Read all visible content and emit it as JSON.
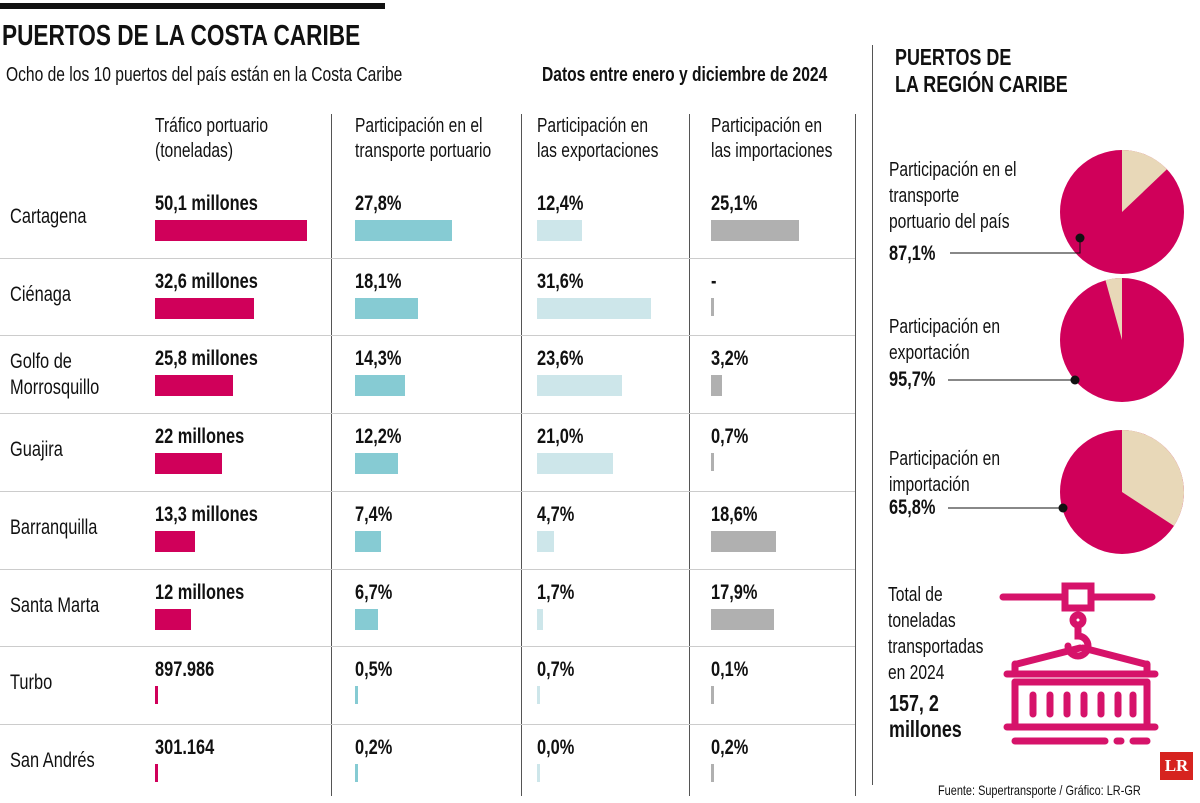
{
  "title": "PUERTOS DE LA COSTA CARIBE",
  "subtitle": "Ocho de los 10 puertos del país están en la Costa Caribe",
  "date_note": "Datos entre enero y diciembre de 2024",
  "colors": {
    "traffic": "#d0005a",
    "transport": "#86cbd3",
    "exports": "#cde6ea",
    "imports": "#b0b0b0",
    "pie_main": "#d0005a",
    "pie_rest": "#e8d8b8"
  },
  "chart_data": {
    "type": "table",
    "columns": [
      {
        "key": "traffic",
        "label_lines": [
          "Tráfico portuario",
          "(toneladas)"
        ]
      },
      {
        "key": "transport",
        "label_lines": [
          "Participación en el",
          "transporte portuario"
        ]
      },
      {
        "key": "exports",
        "label_lines": [
          "Participación en",
          "las exportaciones"
        ]
      },
      {
        "key": "imports",
        "label_lines": [
          "Participación en",
          "las importaciones"
        ]
      }
    ],
    "rows": [
      {
        "port_lines": [
          "Cartagena"
        ],
        "traffic_label": "50,1 millones",
        "traffic": 50.1,
        "transport_label": "27,8%",
        "transport": 27.8,
        "exports_label": "12,4%",
        "exports": 12.4,
        "imports_label": "25,1%",
        "imports": 25.1
      },
      {
        "port_lines": [
          "Ciénaga"
        ],
        "traffic_label": "32,6 millones",
        "traffic": 32.6,
        "transport_label": "18,1%",
        "transport": 18.1,
        "exports_label": "31,6%",
        "exports": 31.6,
        "imports_label": "-",
        "imports": null
      },
      {
        "port_lines": [
          "Golfo de",
          "Morrosquillo"
        ],
        "traffic_label": "25,8 millones",
        "traffic": 25.8,
        "transport_label": "14,3%",
        "transport": 14.3,
        "exports_label": "23,6%",
        "exports": 23.6,
        "imports_label": "3,2%",
        "imports": 3.2
      },
      {
        "port_lines": [
          "Guajira"
        ],
        "traffic_label": "22 millones",
        "traffic": 22,
        "transport_label": "12,2%",
        "transport": 12.2,
        "exports_label": "21,0%",
        "exports": 21.0,
        "imports_label": "0,7%",
        "imports": 0.7
      },
      {
        "port_lines": [
          "Barranquilla"
        ],
        "traffic_label": "13,3 millones",
        "traffic": 13.3,
        "transport_label": "7,4%",
        "transport": 7.4,
        "exports_label": "4,7%",
        "exports": 4.7,
        "imports_label": "18,6%",
        "imports": 18.6
      },
      {
        "port_lines": [
          "Santa Marta"
        ],
        "traffic_label": "12 millones",
        "traffic": 12,
        "transport_label": "6,7%",
        "transport": 6.7,
        "exports_label": "1,7%",
        "exports": 1.7,
        "imports_label": "17,9%",
        "imports": 17.9
      },
      {
        "port_lines": [
          "Turbo"
        ],
        "traffic_label": "897.986",
        "traffic": 0.897986,
        "transport_label": "0,5%",
        "transport": 0.5,
        "exports_label": "0,7%",
        "exports": 0.7,
        "imports_label": "0,1%",
        "imports": 0.1
      },
      {
        "port_lines": [
          "San Andrés"
        ],
        "traffic_label": "301.164",
        "traffic": 0.301164,
        "transport_label": "0,2%",
        "transport": 0.2,
        "exports_label": "0,0%",
        "exports": 0.0,
        "imports_label": "0,2%",
        "imports": 0.2
      }
    ],
    "pies": {
      "title_lines": [
        "PUERTOS DE",
        "LA REGIÓN CARIBE"
      ],
      "items": [
        {
          "label_lines": [
            "Participación en el",
            "transporte",
            "portuario del país"
          ],
          "value_label": "87,1%",
          "value": 87.1
        },
        {
          "label_lines": [
            "Participación en",
            "exportación"
          ],
          "value_label": "95,7%",
          "value": 95.7
        },
        {
          "label_lines": [
            "Participación en",
            "importación"
          ],
          "value_label": "65,8%",
          "value": 65.8
        }
      ]
    }
  },
  "total": {
    "label_lines": [
      "Total de",
      "toneladas",
      "transportadas",
      "en 2024"
    ],
    "value_lines": [
      "157, 2",
      "millones"
    ],
    "icon": "crane-container-icon"
  },
  "source": "Fuente: Supertransporte / Gráfico: LR-GR",
  "logo": "LR"
}
